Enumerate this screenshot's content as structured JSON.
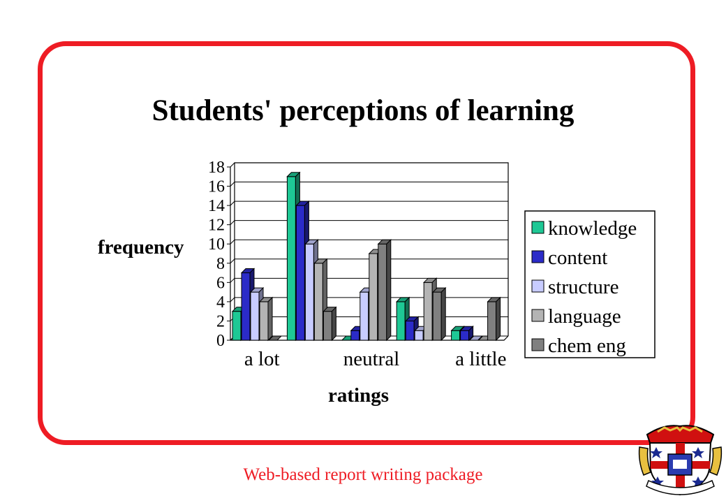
{
  "footer_text": "Web-based report writing package",
  "colors": {
    "frame": "#ee1c24",
    "footer": "#ee1c24"
  },
  "chart_data": {
    "type": "bar",
    "title": "Students' perceptions of learning",
    "xlabel": "ratings",
    "ylabel": "frequency",
    "categories": [
      "a lot",
      "",
      "neutral",
      "",
      "a little"
    ],
    "ylim": [
      0,
      18
    ],
    "yticks": [
      0,
      2,
      4,
      6,
      8,
      10,
      12,
      14,
      16,
      18
    ],
    "grid": true,
    "legend_position": "right",
    "series": [
      {
        "name": "knowledge",
        "color": "#1ec895",
        "values": [
          3,
          17,
          0,
          4,
          1
        ]
      },
      {
        "name": "content",
        "color": "#2b2bc8",
        "values": [
          7,
          14,
          1,
          2,
          1
        ]
      },
      {
        "name": "structure",
        "color": "#c8ccff",
        "values": [
          5,
          10,
          5,
          1,
          0
        ]
      },
      {
        "name": "language",
        "color": "#b4b4b4",
        "values": [
          4,
          8,
          9,
          6,
          0
        ]
      },
      {
        "name": "chem eng",
        "color": "#808080",
        "values": [
          0,
          3,
          10,
          5,
          4
        ]
      }
    ]
  }
}
